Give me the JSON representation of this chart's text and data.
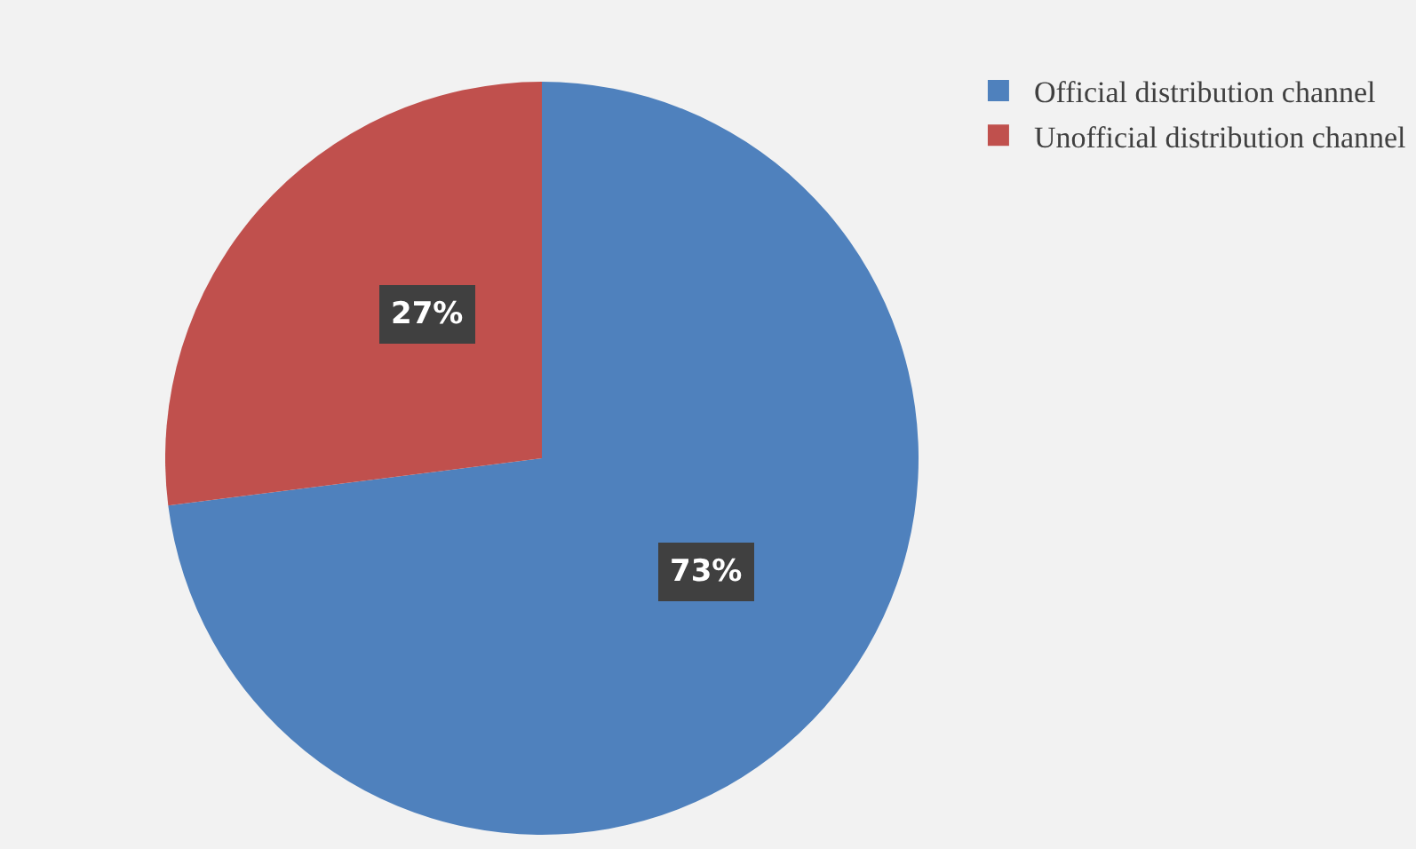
{
  "chart_data": {
    "type": "pie",
    "categories": [
      "Official distribution channel",
      "Unofficial distribution channel"
    ],
    "values": [
      73,
      27
    ],
    "colors": [
      "#4f81bd",
      "#c0504d"
    ],
    "value_labels": [
      "73%",
      "27%"
    ],
    "legend": "top right"
  }
}
